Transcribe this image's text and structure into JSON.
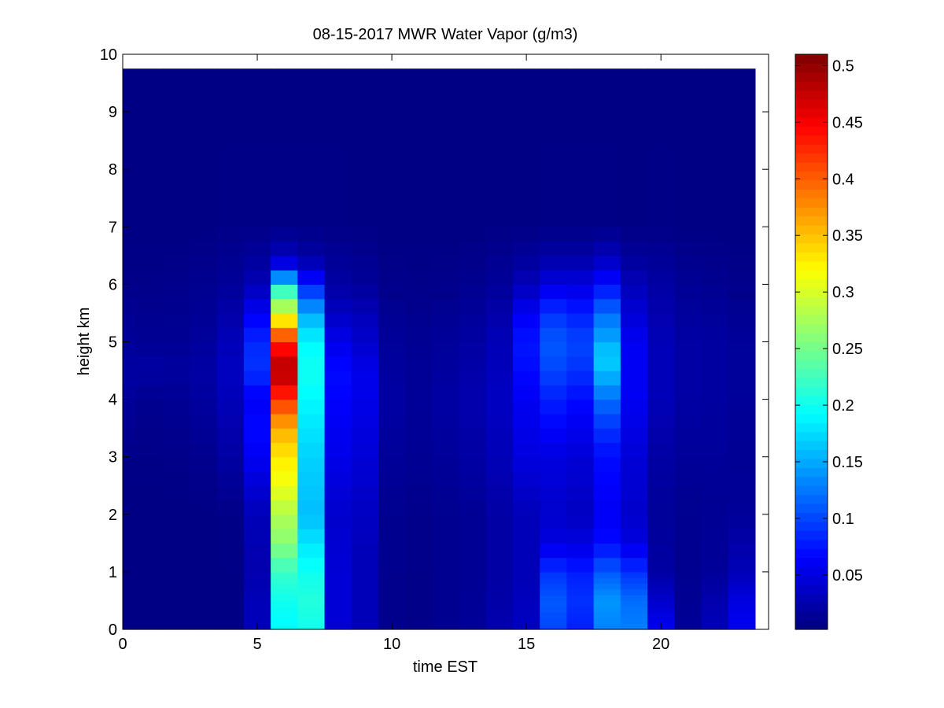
{
  "chart_data": {
    "type": "heatmap",
    "title": "08-15-2017 MWR Water Vapor (g/m3)",
    "xlabel": "time EST",
    "ylabel": "height km",
    "xlim": [
      0,
      24
    ],
    "ylim": [
      0,
      10
    ],
    "x_ticks": [
      "0",
      "5",
      "10",
      "15",
      "20"
    ],
    "y_ticks": [
      "0",
      "1",
      "2",
      "3",
      "4",
      "5",
      "6",
      "7",
      "8",
      "9",
      "10"
    ],
    "colorbar": {
      "colormap": "jet",
      "clim": [
        0.002,
        0.51
      ],
      "ticks": [
        "0.05",
        "0.1",
        "0.15",
        "0.2",
        "0.25",
        "0.3",
        "0.35",
        "0.4",
        "0.45",
        "0.5"
      ]
    },
    "grid": false,
    "data_extent": {
      "time_start": 0,
      "time_end": 23.5,
      "time_step": 1,
      "height_top": 9.75
    },
    "height_levels": [
      0,
      0.1,
      0.2,
      0.3,
      0.4,
      0.5,
      0.6,
      0.7,
      0.8,
      0.9,
      1.0,
      1.25,
      1.5,
      1.75,
      2.0,
      2.25,
      2.5,
      2.75,
      3.0,
      3.25,
      3.5,
      3.75,
      4.0,
      4.25,
      4.5,
      4.75,
      5.0,
      5.25,
      5.5,
      5.75,
      6.0,
      6.25,
      6.5,
      6.75,
      7.0,
      7.25,
      7.5,
      7.75,
      8.0,
      8.25,
      8.5,
      8.75,
      9.0,
      9.25,
      9.5,
      9.75
    ],
    "profiles": [
      {
        "time": 0,
        "height": [
          0,
          2,
          3,
          4,
          4.5,
          5,
          6,
          7,
          10
        ],
        "value": [
          0.004,
          0.004,
          0.006,
          0.015,
          0.02,
          0.015,
          0.007,
          0.004,
          0.004
        ]
      },
      {
        "time": 1,
        "height": [
          0,
          2,
          3,
          4,
          4.5,
          5,
          6,
          7,
          10
        ],
        "value": [
          0.004,
          0.004,
          0.006,
          0.01,
          0.02,
          0.012,
          0.007,
          0.004,
          0.004
        ]
      },
      {
        "time": 2,
        "height": [
          0,
          2,
          3,
          4,
          4.5,
          5,
          6,
          7,
          10
        ],
        "value": [
          0.004,
          0.004,
          0.007,
          0.012,
          0.018,
          0.012,
          0.008,
          0.004,
          0.004
        ]
      },
      {
        "time": 3,
        "height": [
          0,
          2,
          3,
          4,
          4.5,
          5,
          6,
          7,
          10
        ],
        "value": [
          0.004,
          0.005,
          0.009,
          0.018,
          0.02,
          0.016,
          0.01,
          0.005,
          0.004
        ]
      },
      {
        "time": 4,
        "height": [
          0,
          2,
          3,
          4,
          4.5,
          5,
          6,
          7,
          10
        ],
        "value": [
          0.004,
          0.006,
          0.02,
          0.03,
          0.035,
          0.03,
          0.015,
          0.006,
          0.004
        ]
      },
      {
        "time": 5,
        "height": [
          0,
          0.5,
          1,
          2,
          3,
          3.5,
          4,
          4.5,
          5,
          5.5,
          6,
          6.3,
          7,
          10
        ],
        "value": [
          0.03,
          0.03,
          0.025,
          0.03,
          0.06,
          0.07,
          0.06,
          0.09,
          0.085,
          0.06,
          0.03,
          0.02,
          0.006,
          0.004
        ]
      },
      {
        "time": 6,
        "height": [
          0,
          0.5,
          1,
          1.5,
          2,
          2.5,
          3,
          3.5,
          4,
          4.5,
          5,
          5.5,
          6,
          6.25,
          6.5,
          7,
          10
        ],
        "value": [
          0.19,
          0.2,
          0.22,
          0.26,
          0.28,
          0.31,
          0.33,
          0.36,
          0.42,
          0.49,
          0.43,
          0.3,
          0.2,
          0.07,
          0.03,
          0.006,
          0.004
        ]
      },
      {
        "time": 7,
        "height": [
          0,
          0.5,
          1,
          1.5,
          2,
          3,
          4,
          4.5,
          5,
          5.5,
          6,
          6.25,
          6.5,
          7,
          10
        ],
        "value": [
          0.2,
          0.21,
          0.2,
          0.18,
          0.16,
          0.17,
          0.19,
          0.2,
          0.19,
          0.15,
          0.08,
          0.04,
          0.02,
          0.006,
          0.004
        ]
      },
      {
        "time": 8,
        "height": [
          0,
          1,
          2,
          3,
          4,
          4.5,
          5,
          5.5,
          6,
          7,
          10
        ],
        "value": [
          0.045,
          0.045,
          0.04,
          0.055,
          0.065,
          0.07,
          0.055,
          0.035,
          0.02,
          0.006,
          0.004
        ]
      },
      {
        "time": 9,
        "height": [
          0,
          1,
          2,
          3,
          4,
          4.5,
          5,
          5.5,
          6,
          7,
          10
        ],
        "value": [
          0.03,
          0.03,
          0.035,
          0.045,
          0.055,
          0.055,
          0.04,
          0.03,
          0.015,
          0.005,
          0.004
        ]
      },
      {
        "time": 10,
        "height": [
          0,
          2,
          3,
          4,
          5,
          6,
          7,
          10
        ],
        "value": [
          0.008,
          0.01,
          0.015,
          0.02,
          0.015,
          0.008,
          0.004,
          0.004
        ]
      },
      {
        "time": 11,
        "height": [
          0,
          2,
          3,
          4,
          5,
          6,
          7,
          10
        ],
        "value": [
          0.006,
          0.008,
          0.012,
          0.015,
          0.012,
          0.007,
          0.004,
          0.004
        ]
      },
      {
        "time": 12,
        "height": [
          0,
          2,
          3,
          4,
          5,
          6,
          7,
          10
        ],
        "value": [
          0.01,
          0.01,
          0.015,
          0.02,
          0.015,
          0.008,
          0.004,
          0.004
        ]
      },
      {
        "time": 13,
        "height": [
          0,
          1,
          2,
          3,
          4,
          5,
          6,
          7,
          10
        ],
        "value": [
          0.015,
          0.012,
          0.012,
          0.02,
          0.025,
          0.02,
          0.01,
          0.004,
          0.004
        ]
      },
      {
        "time": 14,
        "height": [
          0,
          1,
          2,
          3,
          4,
          5,
          6,
          7,
          10
        ],
        "value": [
          0.025,
          0.02,
          0.02,
          0.03,
          0.035,
          0.03,
          0.015,
          0.005,
          0.004
        ]
      },
      {
        "time": 15,
        "height": [
          0,
          1,
          2,
          3,
          4,
          4.5,
          5,
          5.5,
          6,
          6.5,
          7,
          10
        ],
        "value": [
          0.035,
          0.03,
          0.03,
          0.05,
          0.06,
          0.07,
          0.075,
          0.06,
          0.03,
          0.015,
          0.005,
          0.004
        ]
      },
      {
        "time": 16,
        "height": [
          0,
          0.5,
          1,
          1.5,
          2,
          3,
          4,
          4.5,
          5,
          5.5,
          6,
          6.5,
          7,
          10
        ],
        "value": [
          0.1,
          0.11,
          0.09,
          0.05,
          0.04,
          0.05,
          0.08,
          0.1,
          0.11,
          0.09,
          0.05,
          0.02,
          0.006,
          0.004
        ]
      },
      {
        "time": 17,
        "height": [
          0,
          0.5,
          1,
          1.5,
          2,
          3,
          4,
          4.5,
          5,
          5.5,
          6,
          6.5,
          7,
          10
        ],
        "value": [
          0.08,
          0.09,
          0.08,
          0.05,
          0.035,
          0.045,
          0.07,
          0.09,
          0.1,
          0.08,
          0.05,
          0.02,
          0.006,
          0.004
        ]
      },
      {
        "time": 18,
        "height": [
          0,
          0.5,
          1,
          1.5,
          2,
          3,
          3.5,
          4,
          4.5,
          4.75,
          5,
          5.5,
          6,
          6.5,
          7,
          10
        ],
        "value": [
          0.13,
          0.14,
          0.11,
          0.07,
          0.06,
          0.07,
          0.09,
          0.12,
          0.16,
          0.17,
          0.15,
          0.12,
          0.07,
          0.03,
          0.006,
          0.004
        ]
      },
      {
        "time": 19,
        "height": [
          0,
          0.5,
          1,
          1.5,
          2,
          3,
          4,
          5,
          6,
          6.5,
          7,
          10
        ],
        "value": [
          0.13,
          0.12,
          0.09,
          0.05,
          0.04,
          0.045,
          0.06,
          0.06,
          0.03,
          0.015,
          0.005,
          0.004
        ]
      },
      {
        "time": 20,
        "height": [
          0,
          0.5,
          1,
          2,
          3,
          4,
          5,
          6,
          7,
          10
        ],
        "value": [
          0.06,
          0.04,
          0.02,
          0.015,
          0.02,
          0.03,
          0.03,
          0.02,
          0.006,
          0.004
        ]
      },
      {
        "time": 21,
        "height": [
          0,
          0.5,
          1,
          2,
          3,
          4,
          5,
          6,
          7,
          10
        ],
        "value": [
          0.015,
          0.012,
          0.01,
          0.01,
          0.015,
          0.02,
          0.02,
          0.012,
          0.005,
          0.004
        ]
      },
      {
        "time": 22,
        "height": [
          0,
          0.5,
          1,
          2,
          3,
          4,
          5,
          6,
          7,
          10
        ],
        "value": [
          0.03,
          0.025,
          0.015,
          0.012,
          0.015,
          0.018,
          0.018,
          0.01,
          0.005,
          0.004
        ]
      },
      {
        "time": 23,
        "height": [
          0,
          0.5,
          1,
          2,
          3,
          4,
          5,
          6,
          7,
          10
        ],
        "value": [
          0.06,
          0.05,
          0.03,
          0.015,
          0.012,
          0.015,
          0.015,
          0.008,
          0.004,
          0.004
        ]
      }
    ]
  }
}
